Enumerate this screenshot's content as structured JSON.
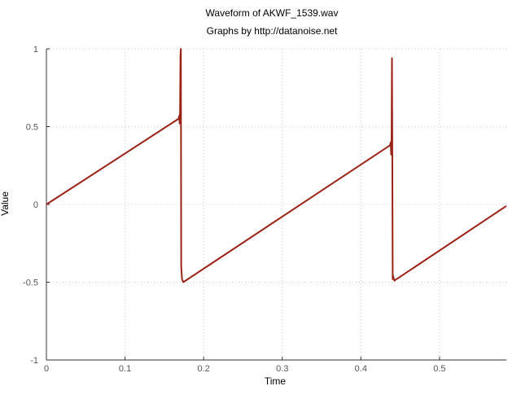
{
  "chart_data": {
    "type": "line",
    "title": "Waveform of AKWF_1539.wav",
    "subtitle": "Graphs by http://datanoise.net",
    "xlabel": "Time",
    "ylabel": "Value",
    "xlim": [
      0,
      0.585
    ],
    "ylim": [
      -1,
      1
    ],
    "x_ticks": [
      0,
      0.1,
      0.2,
      0.3,
      0.4,
      0.5
    ],
    "x_tick_labels": [
      "0",
      "0.1",
      "0.2",
      "0.3",
      "0.4",
      "0.5"
    ],
    "y_ticks": [
      1,
      0.5,
      0,
      -0.5,
      -1
    ],
    "y_tick_labels": [
      "1",
      "0.5",
      "0",
      "-0.5",
      "-1"
    ],
    "grid": true,
    "series": [
      {
        "name": "AKWF_1539",
        "color": "#9b2217",
        "x": [
          0,
          0.168,
          0.169,
          0.1695,
          0.17,
          0.1705,
          0.171,
          0.1715,
          0.1725,
          0.174,
          0.437,
          0.438,
          0.4385,
          0.439,
          0.4395,
          0.44,
          0.4405,
          0.441,
          0.4425,
          0.585
        ],
        "y": [
          0,
          0.55,
          0.57,
          0.52,
          0.6,
          0.96,
          1.0,
          -0.4,
          -0.48,
          -0.5,
          0.38,
          0.4,
          0.32,
          0.42,
          0.94,
          0.2,
          -0.48,
          -0.46,
          -0.49,
          -0.01
        ]
      }
    ]
  }
}
